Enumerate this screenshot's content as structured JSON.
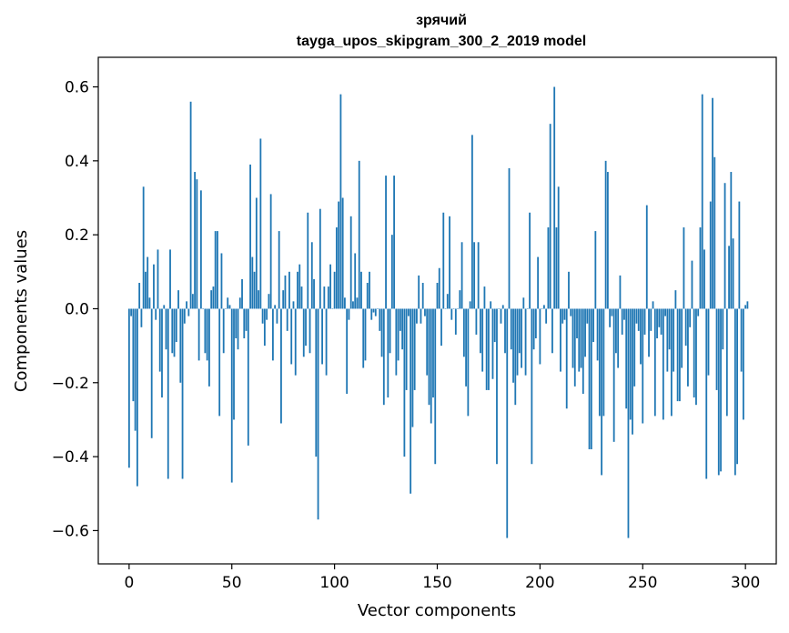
{
  "chart_data": {
    "type": "bar",
    "title": "зрячий",
    "subtitle": "tayga_upos_skipgram_300_2_2019 model",
    "xlabel": "Vector components",
    "ylabel": "Components values",
    "xlim": [
      -15,
      315
    ],
    "ylim": [
      -0.69,
      0.68
    ],
    "xticks": [
      0,
      50,
      100,
      150,
      200,
      250,
      300
    ],
    "yticks": [
      0.6,
      0.4,
      0.2,
      0.0,
      -0.2,
      -0.4,
      -0.6
    ],
    "ytick_labels": [
      "0.6",
      "0.4",
      "0.2",
      "0.0",
      "−0.2",
      "−0.4",
      "−0.6"
    ],
    "grid": false,
    "bar_color": "#1f77b4",
    "values": [
      -0.43,
      -0.02,
      -0.25,
      -0.33,
      -0.48,
      0.07,
      -0.05,
      0.33,
      0.1,
      0.14,
      0.03,
      -0.35,
      0.12,
      -0.03,
      0.16,
      -0.17,
      -0.24,
      0.01,
      -0.11,
      -0.46,
      0.16,
      -0.12,
      -0.13,
      -0.09,
      0.05,
      -0.2,
      -0.46,
      -0.04,
      0.02,
      -0.02,
      0.56,
      0.04,
      0.37,
      0.35,
      -0.14,
      0.32,
      0.0,
      -0.12,
      -0.14,
      -0.21,
      0.05,
      0.06,
      0.21,
      0.21,
      -0.29,
      0.15,
      -0.12,
      0.0,
      0.03,
      0.01,
      -0.47,
      -0.3,
      -0.08,
      -0.11,
      0.03,
      0.08,
      -0.08,
      -0.06,
      -0.37,
      0.39,
      0.14,
      0.1,
      0.3,
      0.05,
      0.46,
      -0.04,
      -0.1,
      -0.03,
      0.04,
      0.31,
      -0.14,
      0.01,
      -0.04,
      0.21,
      -0.31,
      0.05,
      0.09,
      -0.06,
      0.1,
      -0.15,
      0.02,
      -0.18,
      0.1,
      0.12,
      0.06,
      -0.13,
      -0.1,
      0.26,
      -0.12,
      0.18,
      0.08,
      -0.4,
      -0.57,
      0.27,
      -0.15,
      0.06,
      -0.18,
      0.06,
      0.12,
      0.0,
      0.1,
      0.22,
      0.29,
      0.58,
      0.3,
      0.03,
      -0.23,
      -0.03,
      0.25,
      0.02,
      0.15,
      0.03,
      0.4,
      0.1,
      -0.16,
      -0.14,
      0.07,
      0.1,
      -0.03,
      -0.01,
      -0.02,
      0.0,
      -0.06,
      -0.13,
      -0.26,
      0.36,
      -0.24,
      -0.12,
      0.2,
      0.36,
      -0.18,
      -0.14,
      -0.06,
      -0.11,
      -0.4,
      -0.22,
      -0.02,
      -0.5,
      -0.32,
      -0.22,
      -0.04,
      0.09,
      -0.04,
      0.07,
      -0.02,
      -0.18,
      -0.26,
      -0.31,
      -0.24,
      -0.42,
      0.07,
      0.11,
      -0.1,
      0.26,
      0.0,
      0.04,
      0.25,
      -0.03,
      0.0,
      -0.07,
      0.0,
      0.05,
      0.18,
      -0.13,
      -0.21,
      -0.29,
      0.02,
      0.47,
      0.18,
      -0.07,
      0.18,
      -0.12,
      -0.17,
      0.06,
      -0.22,
      -0.22,
      0.02,
      -0.19,
      -0.09,
      -0.42,
      0.0,
      -0.04,
      0.01,
      -0.12,
      -0.62,
      0.38,
      -0.11,
      -0.2,
      -0.26,
      -0.18,
      -0.12,
      -0.16,
      0.03,
      -0.18,
      0.0,
      0.26,
      -0.42,
      -0.11,
      -0.08,
      0.14,
      -0.15,
      0.0,
      0.01,
      -0.04,
      0.22,
      0.5,
      -0.12,
      0.6,
      0.22,
      0.33,
      -0.17,
      -0.04,
      -0.03,
      -0.27,
      0.1,
      -0.02,
      -0.16,
      -0.21,
      -0.08,
      -0.17,
      -0.16,
      -0.23,
      -0.13,
      -0.04,
      -0.38,
      -0.38,
      -0.09,
      0.21,
      -0.14,
      -0.29,
      -0.45,
      -0.29,
      0.4,
      0.37,
      -0.05,
      -0.02,
      -0.36,
      -0.12,
      -0.16,
      0.09,
      -0.07,
      -0.03,
      -0.27,
      -0.62,
      -0.3,
      -0.34,
      -0.21,
      -0.04,
      -0.06,
      -0.15,
      -0.31,
      -0.07,
      0.28,
      -0.13,
      -0.06,
      0.02,
      -0.29,
      -0.08,
      -0.05,
      -0.07,
      -0.3,
      -0.02,
      -0.17,
      -0.11,
      -0.29,
      -0.17,
      0.05,
      -0.25,
      -0.25,
      -0.16,
      0.22,
      -0.1,
      -0.21,
      -0.05,
      0.13,
      -0.24,
      -0.26,
      -0.02,
      0.22,
      0.58,
      0.16,
      -0.46,
      -0.18,
      0.29,
      0.57,
      0.41,
      -0.22,
      -0.45,
      -0.44,
      -0.11,
      0.34,
      -0.29,
      0.17,
      0.37,
      0.19,
      -0.45,
      -0.42,
      0.29,
      -0.17,
      -0.3,
      0.01,
      0.02
    ]
  }
}
